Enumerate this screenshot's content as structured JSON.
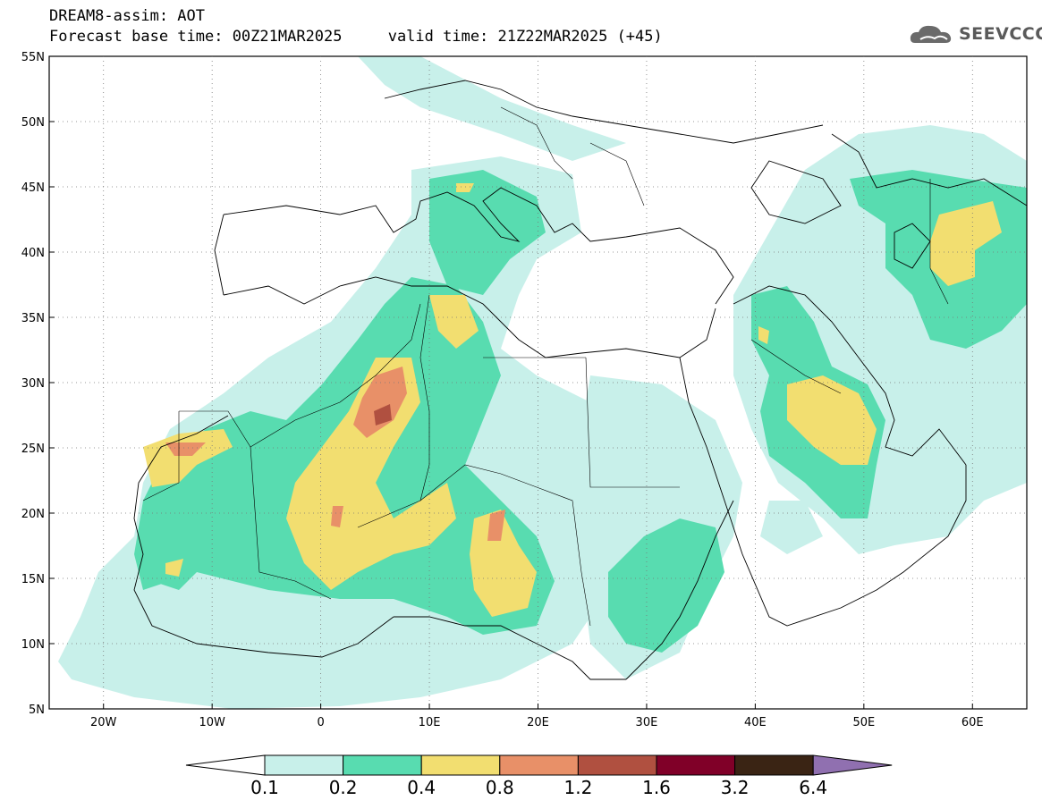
{
  "header": {
    "title": "DREAM8-assim: AOT",
    "base_time": "Forecast base time: 00Z21MAR2025",
    "valid_time": "valid time: 21Z22MAR2025 (+45)"
  },
  "logo": {
    "text": "SEEVCCC",
    "icon": "cloud-logo-icon"
  },
  "map": {
    "lon_range": [
      -25,
      65
    ],
    "lat_range": [
      5,
      55
    ],
    "lat_ticks": [
      "5N",
      "10N",
      "15N",
      "20N",
      "25N",
      "30N",
      "35N",
      "40N",
      "45N",
      "50N",
      "55N"
    ],
    "lon_ticks": [
      "20W",
      "10W",
      "0",
      "10E",
      "20E",
      "30E",
      "40E",
      "50E",
      "60E"
    ],
    "grid": "dotted"
  },
  "colorbar": {
    "labels": [
      "0.1",
      "0.2",
      "0.4",
      "0.8",
      "1.2",
      "1.6",
      "3.2",
      "6.4"
    ],
    "colors": [
      "#c8f0ea",
      "#58dcb0",
      "#f2de70",
      "#e89068",
      "#b05040",
      "#800028",
      "#3a2414",
      "#9070b0"
    ]
  }
}
